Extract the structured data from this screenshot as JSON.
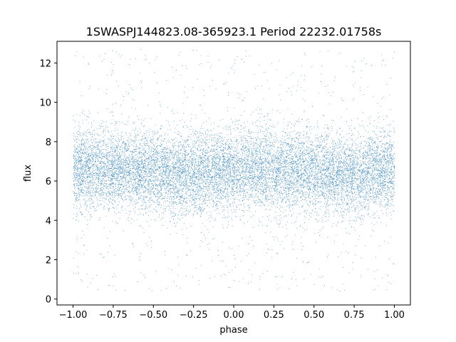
{
  "chart_data": {
    "type": "scatter",
    "title": "1SWASPJ144823.08-365923.1 Period 22232.01758s",
    "xlabel": "phase",
    "ylabel": "flux",
    "xlim": [
      -1.1,
      1.1
    ],
    "ylim": [
      -0.3,
      13.1
    ],
    "x_ticks": [
      -1.0,
      -0.75,
      -0.5,
      -0.25,
      0.0,
      0.25,
      0.5,
      0.75,
      1.0
    ],
    "x_tick_labels": [
      "−1.00",
      "−0.75",
      "−0.50",
      "−0.25",
      "0.00",
      "0.25",
      "0.50",
      "0.75",
      "1.00"
    ],
    "y_ticks": [
      0,
      2,
      4,
      6,
      8,
      10,
      12
    ],
    "y_tick_labels": [
      "0",
      "2",
      "4",
      "6",
      "8",
      "10",
      "12"
    ],
    "series": [
      {
        "marker_color": "#1f77b4",
        "x_range": [
          -1.0,
          1.0
        ],
        "core_flux_range": [
          4.0,
          9.0
        ],
        "core_mean_flux": 6.6,
        "scatter_flux_range": [
          0.4,
          12.7
        ],
        "shape": "dense band of points between flux 4 and 9 centred near 6.6, sparse outliers from about 0.4 to 12.7, slight dip in the band near phase -0.3 and 0.7"
      }
    ],
    "grid": false,
    "legend": "none"
  }
}
